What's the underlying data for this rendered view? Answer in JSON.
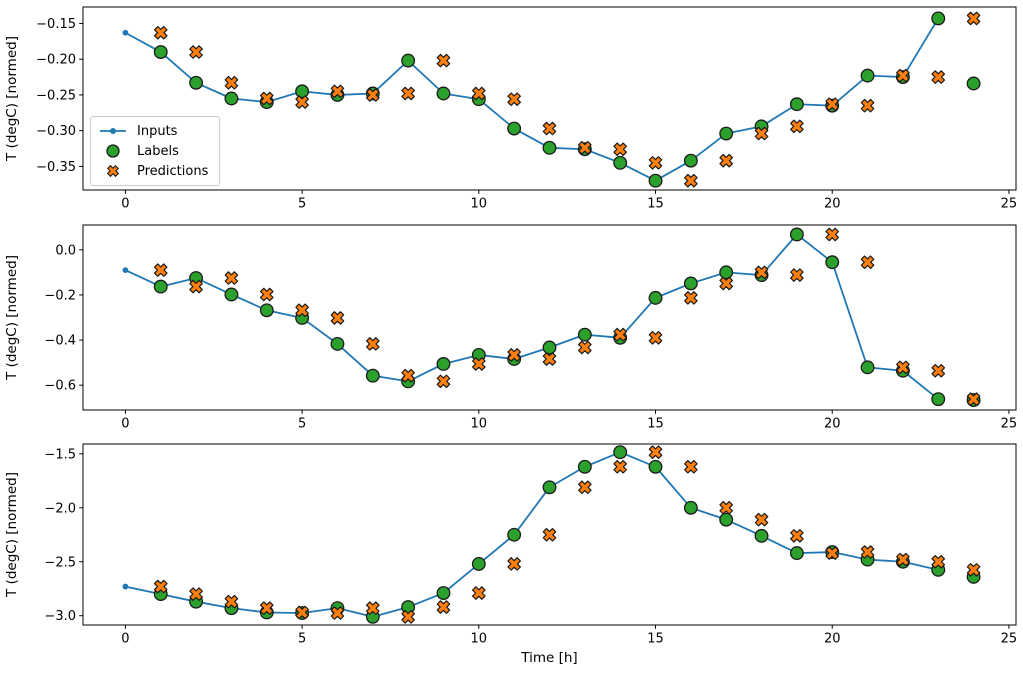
{
  "figure": {
    "legend": {
      "items": [
        {
          "label": "Inputs",
          "color": "#1f77b4",
          "marker": "line-dot"
        },
        {
          "label": "Labels",
          "color": "#2ca02c",
          "marker": "circle"
        },
        {
          "label": "Predictions",
          "color": "#ff7f0e",
          "marker": "X"
        }
      ]
    },
    "colors": {
      "inputs": "#1f77b4",
      "labels": "#2ca02c",
      "predictions": "#ff7f0e",
      "marker_edge": "#1a1a1a",
      "axis": "#000000"
    }
  },
  "chart_data": [
    {
      "type": "line",
      "title": "",
      "xlabel": "",
      "ylabel": "T (degC) [normed]",
      "xlim": [
        -1.2,
        25.2
      ],
      "ylim": [
        -0.383,
        -0.127
      ],
      "x_ticks": [
        0,
        5,
        10,
        15,
        20,
        25
      ],
      "x_tick_labels": [
        "0",
        "5",
        "10",
        "15",
        "20",
        "25"
      ],
      "y_ticks": [
        {
          "v": -0.15,
          "label": "−0.15"
        },
        {
          "v": -0.2,
          "label": "−0.20"
        },
        {
          "v": -0.25,
          "label": "−0.25"
        },
        {
          "v": -0.3,
          "label": "−0.30"
        },
        {
          "v": -0.35,
          "label": "−0.35"
        }
      ],
      "series": [
        {
          "name": "Inputs",
          "style": "line-dot",
          "color": "#1f77b4",
          "x": [
            0,
            1,
            2,
            3,
            4,
            5,
            6,
            7,
            8,
            9,
            10,
            11,
            12,
            13,
            14,
            15,
            16,
            17,
            18,
            19,
            20,
            21,
            22,
            23
          ],
          "y": [
            -0.163,
            -0.19,
            -0.233,
            -0.255,
            -0.26,
            -0.245,
            -0.25,
            -0.248,
            -0.202,
            -0.248,
            -0.256,
            -0.297,
            -0.324,
            -0.326,
            -0.345,
            -0.37,
            -0.342,
            -0.304,
            -0.294,
            -0.263,
            -0.265,
            -0.223,
            -0.225,
            -0.143
          ]
        },
        {
          "name": "Labels",
          "style": "circle",
          "color": "#2ca02c",
          "edge": "#1a1a1a",
          "x": [
            1,
            2,
            3,
            4,
            5,
            6,
            7,
            8,
            9,
            10,
            11,
            12,
            13,
            14,
            15,
            16,
            17,
            18,
            19,
            20,
            21,
            22,
            23,
            24
          ],
          "y": [
            -0.19,
            -0.233,
            -0.255,
            -0.26,
            -0.245,
            -0.25,
            -0.248,
            -0.202,
            -0.248,
            -0.256,
            -0.297,
            -0.324,
            -0.326,
            -0.345,
            -0.37,
            -0.342,
            -0.304,
            -0.294,
            -0.263,
            -0.265,
            -0.223,
            -0.225,
            -0.143,
            -0.234
          ]
        },
        {
          "name": "Predictions",
          "style": "X",
          "color": "#ff7f0e",
          "edge": "#1a1a1a",
          "x": [
            1,
            2,
            3,
            4,
            5,
            6,
            7,
            8,
            9,
            10,
            11,
            12,
            13,
            14,
            15,
            16,
            17,
            18,
            19,
            20,
            21,
            22,
            23,
            24
          ],
          "y": [
            -0.163,
            -0.19,
            -0.233,
            -0.255,
            -0.26,
            -0.245,
            -0.25,
            -0.248,
            -0.202,
            -0.248,
            -0.256,
            -0.297,
            -0.324,
            -0.326,
            -0.345,
            -0.37,
            -0.342,
            -0.304,
            -0.294,
            -0.263,
            -0.265,
            -0.223,
            -0.225,
            -0.143
          ]
        }
      ]
    },
    {
      "type": "line",
      "title": "",
      "xlabel": "",
      "ylabel": "T (degC) [normed]",
      "xlim": [
        -1.2,
        25.2
      ],
      "ylim": [
        -0.71,
        0.11
      ],
      "x_ticks": [
        0,
        5,
        10,
        15,
        20,
        25
      ],
      "x_tick_labels": [
        "0",
        "5",
        "10",
        "15",
        "20",
        "25"
      ],
      "y_ticks": [
        {
          "v": 0.0,
          "label": "0.0"
        },
        {
          "v": -0.2,
          "label": "−0.2"
        },
        {
          "v": -0.4,
          "label": "−0.4"
        },
        {
          "v": -0.6,
          "label": "−0.6"
        }
      ],
      "series": [
        {
          "name": "Inputs",
          "style": "line-dot",
          "color": "#1f77b4",
          "x": [
            0,
            1,
            2,
            3,
            4,
            5,
            6,
            7,
            8,
            9,
            10,
            11,
            12,
            13,
            14,
            15,
            16,
            17,
            18,
            19,
            20,
            21,
            22,
            23
          ],
          "y": [
            -0.09,
            -0.163,
            -0.125,
            -0.198,
            -0.268,
            -0.302,
            -0.417,
            -0.558,
            -0.583,
            -0.506,
            -0.466,
            -0.484,
            -0.433,
            -0.376,
            -0.39,
            -0.213,
            -0.149,
            -0.1,
            -0.112,
            0.068,
            -0.055,
            -0.521,
            -0.536,
            -0.662
          ]
        },
        {
          "name": "Labels",
          "style": "circle",
          "color": "#2ca02c",
          "edge": "#1a1a1a",
          "x": [
            1,
            2,
            3,
            4,
            5,
            6,
            7,
            8,
            9,
            10,
            11,
            12,
            13,
            14,
            15,
            16,
            17,
            18,
            19,
            20,
            21,
            22,
            23,
            24
          ],
          "y": [
            -0.163,
            -0.125,
            -0.198,
            -0.268,
            -0.302,
            -0.417,
            -0.558,
            -0.583,
            -0.506,
            -0.466,
            -0.484,
            -0.433,
            -0.376,
            -0.39,
            -0.213,
            -0.149,
            -0.1,
            -0.112,
            0.068,
            -0.055,
            -0.521,
            -0.536,
            -0.662,
            -0.666
          ]
        },
        {
          "name": "Predictions",
          "style": "X",
          "color": "#ff7f0e",
          "edge": "#1a1a1a",
          "x": [
            1,
            2,
            3,
            4,
            5,
            6,
            7,
            8,
            9,
            10,
            11,
            12,
            13,
            14,
            15,
            16,
            17,
            18,
            19,
            20,
            21,
            22,
            23,
            24
          ],
          "y": [
            -0.09,
            -0.163,
            -0.125,
            -0.198,
            -0.268,
            -0.302,
            -0.417,
            -0.558,
            -0.583,
            -0.506,
            -0.466,
            -0.484,
            -0.433,
            -0.376,
            -0.39,
            -0.213,
            -0.149,
            -0.1,
            -0.112,
            0.068,
            -0.055,
            -0.521,
            -0.536,
            -0.662
          ]
        }
      ]
    },
    {
      "type": "line",
      "title": "",
      "xlabel": "Time [h]",
      "ylabel": "T (degC) [normed]",
      "xlim": [
        -1.2,
        25.2
      ],
      "ylim": [
        -3.086,
        -1.409
      ],
      "x_ticks": [
        0,
        5,
        10,
        15,
        20,
        25
      ],
      "x_tick_labels": [
        "0",
        "5",
        "10",
        "15",
        "20",
        "25"
      ],
      "y_ticks": [
        {
          "v": -1.5,
          "label": "−1.5"
        },
        {
          "v": -2.0,
          "label": "−2.0"
        },
        {
          "v": -2.5,
          "label": "−2.5"
        },
        {
          "v": -3.0,
          "label": "−3.0"
        }
      ],
      "series": [
        {
          "name": "Inputs",
          "style": "line-dot",
          "color": "#1f77b4",
          "x": [
            0,
            1,
            2,
            3,
            4,
            5,
            6,
            7,
            8,
            9,
            10,
            11,
            12,
            13,
            14,
            15,
            16,
            17,
            18,
            19,
            20,
            21,
            22,
            23
          ],
          "y": [
            -2.73,
            -2.8,
            -2.87,
            -2.93,
            -2.97,
            -2.975,
            -2.93,
            -3.01,
            -2.92,
            -2.79,
            -2.52,
            -2.25,
            -1.81,
            -1.62,
            -1.485,
            -1.62,
            -2.0,
            -2.11,
            -2.26,
            -2.42,
            -2.41,
            -2.48,
            -2.5,
            -2.575
          ]
        },
        {
          "name": "Labels",
          "style": "circle",
          "color": "#2ca02c",
          "edge": "#1a1a1a",
          "x": [
            1,
            2,
            3,
            4,
            5,
            6,
            7,
            8,
            9,
            10,
            11,
            12,
            13,
            14,
            15,
            16,
            17,
            18,
            19,
            20,
            21,
            22,
            23,
            24
          ],
          "y": [
            -2.8,
            -2.87,
            -2.93,
            -2.97,
            -2.975,
            -2.93,
            -3.01,
            -2.92,
            -2.79,
            -2.52,
            -2.25,
            -1.81,
            -1.62,
            -1.485,
            -1.62,
            -2.0,
            -2.11,
            -2.26,
            -2.42,
            -2.41,
            -2.48,
            -2.5,
            -2.575,
            -2.64
          ]
        },
        {
          "name": "Predictions",
          "style": "X",
          "color": "#ff7f0e",
          "edge": "#1a1a1a",
          "x": [
            1,
            2,
            3,
            4,
            5,
            6,
            7,
            8,
            9,
            10,
            11,
            12,
            13,
            14,
            15,
            16,
            17,
            18,
            19,
            20,
            21,
            22,
            23,
            24
          ],
          "y": [
            -2.73,
            -2.8,
            -2.87,
            -2.93,
            -2.97,
            -2.975,
            -2.93,
            -3.01,
            -2.92,
            -2.79,
            -2.52,
            -2.25,
            -1.81,
            -1.62,
            -1.485,
            -1.62,
            -2.0,
            -2.11,
            -2.26,
            -2.42,
            -2.41,
            -2.48,
            -2.5,
            -2.575
          ]
        }
      ]
    }
  ]
}
